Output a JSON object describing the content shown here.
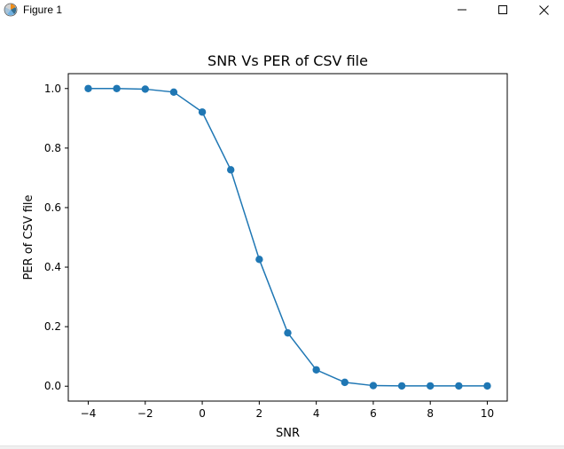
{
  "window": {
    "title": "Figure 1",
    "controls": {
      "minimize": "minimize-icon",
      "maximize": "maximize-icon",
      "close": "close-icon"
    }
  },
  "chart_data": {
    "type": "line",
    "title": "SNR Vs PER of CSV file",
    "xlabel": "SNR",
    "ylabel": "PER of CSV file",
    "x": [
      -4,
      -3,
      -2,
      -1,
      0,
      1,
      2,
      3,
      4,
      5,
      6,
      7,
      8,
      9,
      10
    ],
    "series": [
      {
        "values": [
          1.0,
          1.0,
          0.998,
          0.988,
          0.921,
          0.727,
          0.426,
          0.179,
          0.055,
          0.013,
          0.002,
          0.001,
          0.001,
          0.001,
          0.001
        ]
      }
    ],
    "xticks": [
      -4,
      -2,
      0,
      2,
      4,
      6,
      8,
      10
    ],
    "xtick_labels": [
      "−4",
      "−2",
      "0",
      "2",
      "4",
      "6",
      "8",
      "10"
    ],
    "yticks": [
      0.0,
      0.2,
      0.4,
      0.6,
      0.8,
      1.0
    ],
    "ytick_labels": [
      "0.0",
      "0.2",
      "0.4",
      "0.6",
      "0.8",
      "1.0"
    ],
    "xlim": [
      -4.7,
      10.7
    ],
    "ylim": [
      -0.05,
      1.05
    ],
    "grid": false,
    "colors": {
      "series": "#1f77b4",
      "axes": "#000000"
    },
    "markers": "circle"
  }
}
